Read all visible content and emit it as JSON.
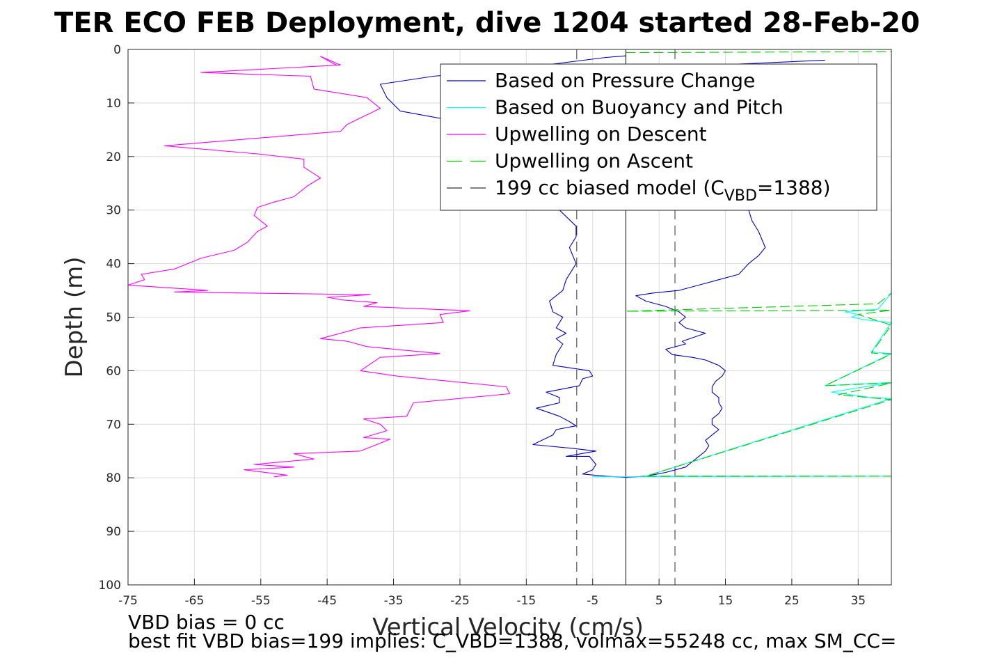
{
  "chart_data": {
    "type": "line",
    "title": "TER ECO FEB Deployment, dive 1204 started 28-Feb-20",
    "xlabel": "Vertical Velocity (cm/s)",
    "ylabel": "Depth (m)",
    "xlim": [
      -75,
      40
    ],
    "ylim": [
      0,
      100
    ],
    "y_reversed": true,
    "grid": true,
    "xticks": [
      -75,
      -65,
      -55,
      -45,
      -35,
      -25,
      -15,
      -5,
      5,
      15,
      25,
      35
    ],
    "yticks": [
      0,
      10,
      20,
      30,
      40,
      50,
      60,
      70,
      80,
      90,
      100
    ],
    "legend_placement": "top-right",
    "legend": [
      {
        "label": "Based on Pressure Change",
        "color": "#0000cc",
        "style": "solid"
      },
      {
        "label": "Based on Buoyancy and Pitch",
        "color": "#00ffff",
        "style": "solid"
      },
      {
        "label": "Upwelling on Descent",
        "color": "#ff00ff",
        "style": "solid"
      },
      {
        "label": "Upwelling on Ascent",
        "color": "#00cc00",
        "style": "dashed"
      },
      {
        "label": "199 cc biased model (C",
        "sub": "VBD",
        "label_end": "=1388)",
        "color": "#333333",
        "style": "dashed"
      }
    ],
    "series": [
      {
        "name": "Based on Pressure Change",
        "color": "#0000cc",
        "points": [
          [
            0,
            79.9
          ],
          [
            -3,
            79.7
          ],
          [
            -6.5,
            79.3
          ],
          [
            -5,
            78.5
          ],
          [
            -4.5,
            77.5
          ],
          [
            -5.5,
            76
          ],
          [
            -9,
            76
          ],
          [
            -4.5,
            75
          ],
          [
            -8,
            74.5
          ],
          [
            -14,
            73.8
          ],
          [
            -11,
            72
          ],
          [
            -10.5,
            71
          ],
          [
            -7.5,
            70.3
          ],
          [
            -8.5,
            69.5
          ],
          [
            -10,
            68.5
          ],
          [
            -13.5,
            67
          ],
          [
            -10,
            66
          ],
          [
            -10,
            65
          ],
          [
            -12,
            64
          ],
          [
            -7,
            62.8
          ],
          [
            -6.5,
            61.5
          ],
          [
            -5,
            61
          ],
          [
            -5.5,
            60
          ],
          [
            -11,
            59
          ],
          [
            -10.5,
            57
          ],
          [
            -9.5,
            55
          ],
          [
            -10.5,
            54
          ],
          [
            -9,
            53
          ],
          [
            -10.5,
            52
          ],
          [
            -9.5,
            50
          ],
          [
            -11,
            49
          ],
          [
            -11.5,
            47
          ],
          [
            -9.5,
            45
          ],
          [
            -9,
            43
          ],
          [
            -7.5,
            40
          ],
          [
            -8.5,
            37
          ],
          [
            -7.5,
            35
          ],
          [
            -7.5,
            33
          ],
          [
            -10,
            30
          ],
          [
            -9,
            20
          ],
          [
            -23,
            14
          ],
          [
            -34,
            11.5
          ],
          [
            -36,
            9
          ],
          [
            -37,
            6.5
          ],
          [
            -29,
            5
          ],
          [
            -16,
            3.5
          ],
          [
            -3,
            1.5
          ],
          [
            0,
            1.2
          ]
        ]
      },
      {
        "name": "Based on Pressure Change (ascent)",
        "color": "#0000cc",
        "points": [
          [
            0,
            79.9
          ],
          [
            3,
            79.7
          ],
          [
            6,
            79
          ],
          [
            9,
            78
          ],
          [
            10,
            77
          ],
          [
            11,
            76
          ],
          [
            12,
            75
          ],
          [
            12.5,
            74
          ],
          [
            12,
            73
          ],
          [
            13,
            72
          ],
          [
            14,
            71
          ],
          [
            13,
            70
          ],
          [
            13,
            69
          ],
          [
            14,
            68
          ],
          [
            14.5,
            67
          ],
          [
            14,
            66
          ],
          [
            14,
            65
          ],
          [
            13,
            64
          ],
          [
            13,
            63
          ],
          [
            13.5,
            62
          ],
          [
            14.5,
            61
          ],
          [
            15,
            60
          ],
          [
            14,
            59
          ],
          [
            12,
            58
          ],
          [
            10,
            57.5
          ],
          [
            7,
            57
          ],
          [
            6,
            56
          ],
          [
            9,
            55
          ],
          [
            8.5,
            54.5
          ],
          [
            12,
            53
          ],
          [
            9,
            52
          ],
          [
            8,
            51
          ],
          [
            9,
            50
          ],
          [
            8,
            49
          ],
          [
            6,
            48
          ],
          [
            3,
            47
          ],
          [
            1.5,
            46
          ],
          [
            4,
            45.5
          ],
          [
            8,
            45
          ],
          [
            11,
            44
          ],
          [
            14,
            43
          ],
          [
            17,
            42
          ],
          [
            18.5,
            40
          ],
          [
            20,
            38.5
          ],
          [
            21,
            37
          ],
          [
            20,
            34
          ],
          [
            19,
            32
          ],
          [
            18.5,
            30
          ],
          [
            17,
            25
          ],
          [
            10,
            20
          ],
          [
            5,
            10
          ],
          [
            12,
            3
          ],
          [
            30,
            2
          ]
        ]
      },
      {
        "name": "Based on Buoyancy and Pitch",
        "color": "#00ffff",
        "points": [
          [
            40,
            45.5
          ],
          [
            38,
            48.5
          ],
          [
            33,
            49
          ],
          [
            35,
            49.5
          ],
          [
            34,
            50
          ],
          [
            36,
            50.5
          ],
          [
            40,
            51
          ],
          [
            37,
            56.5
          ],
          [
            40,
            56.8
          ],
          [
            30,
            62.8
          ],
          [
            35,
            62.5
          ],
          [
            40,
            62.2
          ],
          [
            31,
            64
          ],
          [
            37,
            65
          ],
          [
            40,
            65.2
          ],
          [
            3,
            79.7
          ],
          [
            40,
            79.7
          ],
          [
            -5,
            79.8
          ]
        ]
      },
      {
        "name": "Upwelling on Descent",
        "color": "#ff00ff",
        "points": [
          [
            -43.5,
            3
          ],
          [
            -46,
            1.3
          ],
          [
            -43,
            2.9
          ],
          [
            -64,
            4.3
          ],
          [
            -47.5,
            5
          ],
          [
            -47,
            7.4
          ],
          [
            -39,
            9
          ],
          [
            -37,
            11
          ],
          [
            -42,
            14
          ],
          [
            -43,
            15.3
          ],
          [
            -69.5,
            18
          ],
          [
            -55.5,
            19.5
          ],
          [
            -48.5,
            20.5
          ],
          [
            -48.5,
            22
          ],
          [
            -46,
            24
          ],
          [
            -48,
            25.5
          ],
          [
            -50,
            27.5
          ],
          [
            -53,
            28.5
          ],
          [
            -55.5,
            29.5
          ],
          [
            -56,
            31
          ],
          [
            -54,
            33
          ],
          [
            -55.5,
            34
          ],
          [
            -57,
            36
          ],
          [
            -59,
            37.5
          ],
          [
            -64,
            39
          ],
          [
            -68,
            41
          ],
          [
            -73,
            42
          ],
          [
            -72.5,
            43
          ],
          [
            -75,
            44
          ],
          [
            -63,
            45
          ],
          [
            -68,
            45.3
          ],
          [
            -38.5,
            45.8
          ],
          [
            -45,
            46.3
          ],
          [
            -42.5,
            46.8
          ],
          [
            -37.5,
            47.3
          ],
          [
            -39.5,
            48
          ],
          [
            -23.5,
            48.8
          ],
          [
            -28,
            49.5
          ],
          [
            -27.5,
            51
          ],
          [
            -40,
            52
          ],
          [
            -46,
            54
          ],
          [
            -42,
            54.5
          ],
          [
            -39,
            55.5
          ],
          [
            -28,
            56.8
          ],
          [
            -37,
            57.5
          ],
          [
            -40,
            60
          ],
          [
            -34.5,
            61
          ],
          [
            -18,
            63
          ],
          [
            -17.5,
            64.3
          ],
          [
            -32,
            66
          ],
          [
            -33,
            68.5
          ],
          [
            -39.5,
            69
          ],
          [
            -37,
            70
          ],
          [
            -36,
            71.2
          ],
          [
            -39.5,
            72.5
          ],
          [
            -35.5,
            72.8
          ],
          [
            -40,
            75
          ],
          [
            -50,
            75.5
          ],
          [
            -47,
            76.5
          ],
          [
            -56,
            77.5
          ],
          [
            -50,
            78
          ],
          [
            -57.5,
            78.5
          ],
          [
            -51,
            79.5
          ],
          [
            -53,
            79.8
          ]
        ]
      },
      {
        "name": "Upwelling on Ascent",
        "color": "#00cc00",
        "points": [
          [
            0,
            0.6
          ],
          [
            40,
            0.4
          ],
          [
            40,
            45.5
          ],
          [
            38,
            47.5
          ],
          [
            0,
            48.9
          ],
          [
            40,
            48.7
          ],
          [
            35,
            49.5
          ],
          [
            40,
            51.5
          ],
          [
            37,
            56.7
          ],
          [
            40,
            56.9
          ],
          [
            30,
            62.8
          ],
          [
            40,
            62.3
          ],
          [
            32,
            64.5
          ],
          [
            40,
            65.4
          ],
          [
            3,
            79.7
          ],
          [
            40,
            79.7
          ]
        ]
      }
    ],
    "vertical_lines": [
      {
        "x": 0,
        "style": "solid",
        "color": "#000000"
      },
      {
        "x": -7.4,
        "style": "dashed",
        "color": "#333333"
      },
      {
        "x": 7.4,
        "style": "dashed",
        "color": "#333333"
      }
    ]
  },
  "footer": {
    "line1": "VBD bias = 0 cc",
    "line2": "best fit VBD bias=199 implies: C_VBD=1388, volmax=55248 cc, max SM_CC="
  }
}
